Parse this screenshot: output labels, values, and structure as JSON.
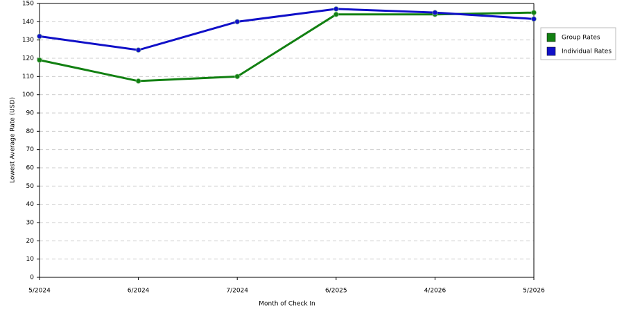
{
  "chart_data": {
    "type": "line",
    "x_label": "Month of Check In",
    "y_label": "Lowest Average Rate (USD)",
    "categories": [
      "5/2024",
      "6/2024",
      "7/2024",
      "6/2025",
      "4/2026",
      "5/2026"
    ],
    "series": [
      {
        "name": "Group Rates",
        "color": "#128012",
        "values": [
          119,
          107.5,
          110,
          144,
          144,
          145
        ]
      },
      {
        "name": "Individual Rates",
        "color": "#1010c8",
        "values": [
          132,
          124.5,
          140,
          147,
          145,
          141.5
        ]
      }
    ],
    "ylim": [
      0,
      150
    ],
    "yticks": [
      0,
      10,
      20,
      30,
      40,
      50,
      60,
      70,
      80,
      90,
      100,
      110,
      120,
      130,
      140,
      150
    ],
    "grid": true,
    "legend": "right"
  }
}
